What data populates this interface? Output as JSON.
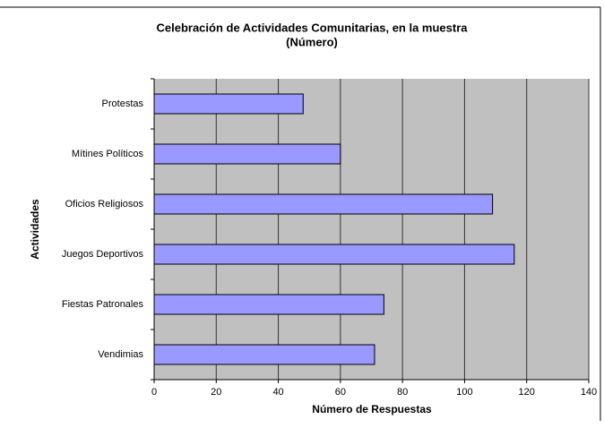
{
  "chart_data": {
    "type": "hbar",
    "title": [
      "Celebración de Actividades Comunitarias, en la muestra",
      "(Número)"
    ],
    "xlabel": "Número de Respuestas",
    "ylabel": "Actividades",
    "categories": [
      "Protestas",
      "Mítines Políticos",
      "Oficios Religiosos",
      "Juegos Deportivos",
      "Fiestas Patronales",
      "Vendimias"
    ],
    "values": [
      48,
      60,
      109,
      116,
      74,
      71
    ],
    "color": "#9999ff",
    "xlim": [
      0,
      140
    ],
    "xticks": [
      0,
      20,
      40,
      60,
      80,
      100,
      120,
      140
    ],
    "grid": true
  }
}
